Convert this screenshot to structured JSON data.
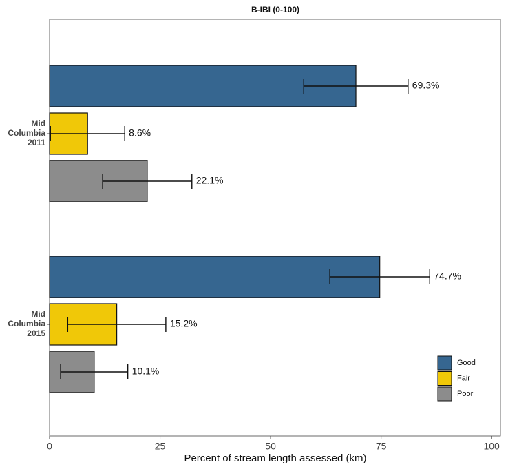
{
  "chart_data": {
    "type": "bar",
    "orientation": "horizontal",
    "title": "B-IBI (0-100)",
    "x_label": "Percent of stream length assessed (km)",
    "categories": [
      "Mid Columbia 2011",
      "Mid Columbia 2015"
    ],
    "series": [
      {
        "name": "Good",
        "color": "#366690",
        "values": [
          69.3,
          74.7
        ],
        "errors": [
          11.8,
          11.3
        ],
        "value_labels": [
          "69.3%",
          "74.7%"
        ]
      },
      {
        "name": "Fair",
        "color": "#f0c808",
        "values": [
          8.6,
          15.2
        ],
        "errors": [
          8.4,
          11.1
        ],
        "value_labels": [
          "8.6%",
          "15.2%"
        ]
      },
      {
        "name": "Poor",
        "color": "#8c8c8c",
        "values": [
          22.1,
          10.1
        ],
        "errors": [
          10.1,
          7.6
        ],
        "value_labels": [
          "22.1%",
          "10.1%"
        ]
      }
    ],
    "xlim": [
      0,
      102
    ],
    "xticks": [
      0,
      25,
      50,
      75,
      100
    ],
    "legend": "bottom-right"
  }
}
